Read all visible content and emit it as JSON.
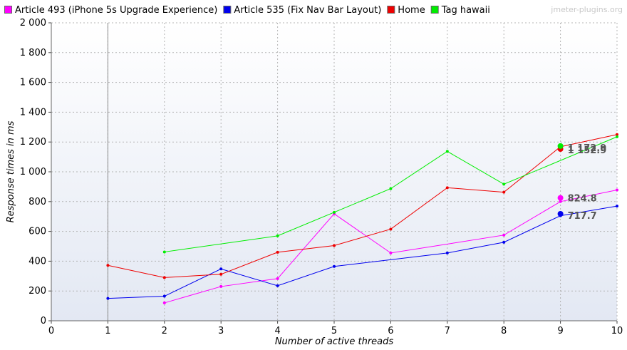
{
  "watermark": "jmeter-plugins.org",
  "colors": {
    "plot_bg_top": "#ffffff",
    "plot_bg_bottom": "#e3e8f3",
    "grid": "#b4b4b4",
    "marker_line": "#8a8a8a"
  },
  "chart_data": {
    "type": "line",
    "xlabel": "Number of active threads",
    "ylabel": "Response times in ms",
    "xlim": [
      0,
      10
    ],
    "ylim": [
      0,
      2000
    ],
    "x_ticks": [
      0,
      1,
      2,
      3,
      4,
      5,
      6,
      7,
      8,
      9,
      10
    ],
    "y_ticks": [
      0,
      200,
      400,
      600,
      800,
      1000,
      1200,
      1400,
      1600,
      1800,
      2000
    ],
    "y_tick_labels": [
      "0",
      "200",
      "400",
      "600",
      "800",
      "1 000",
      "1 200",
      "1 400",
      "1 600",
      "1 800",
      "2 000"
    ],
    "vertical_marker_x": 1,
    "grid": true,
    "legend_position": "top",
    "series": [
      {
        "name": "Article 493 (iPhone 5s Upgrade Experience)",
        "color": "#ff00ff",
        "x": [
          2,
          3,
          4,
          5,
          6,
          8,
          9,
          10
        ],
        "y": [
          120,
          230,
          283,
          718,
          455,
          575,
          800,
          878
        ],
        "highlight": {
          "x": 9,
          "y": 824.8,
          "label": "824.8",
          "label_dy": -16
        }
      },
      {
        "name": "Article 535 (Fix Nav Bar Layout)",
        "color": "#0000ee",
        "x": [
          1,
          2,
          3,
          4,
          5,
          7,
          8,
          9,
          10
        ],
        "y": [
          150,
          165,
          348,
          235,
          365,
          455,
          527,
          705,
          770
        ],
        "highlight": {
          "x": 9,
          "y": 717.7,
          "label": "717.7",
          "label_dy": -14
        }
      },
      {
        "name": "Home",
        "color": "#ee0000",
        "x": [
          1,
          2,
          3,
          4,
          5,
          6,
          7,
          8,
          9,
          10
        ],
        "y": [
          372,
          290,
          312,
          460,
          505,
          615,
          893,
          863,
          1168,
          1250
        ],
        "highlight": {
          "x": 9,
          "y": 1152.9,
          "label": "1 152.9",
          "label_dy": -15
        }
      },
      {
        "name": "Tag hawaii",
        "color": "#00ee00",
        "x": [
          2,
          4,
          5,
          6,
          7,
          8,
          10
        ],
        "y": [
          462,
          570,
          728,
          887,
          1137,
          917,
          1235
        ],
        "highlight": {
          "x": 9,
          "y": 1172.9,
          "label": "1 172.9",
          "label_dy": -14
        }
      }
    ]
  }
}
